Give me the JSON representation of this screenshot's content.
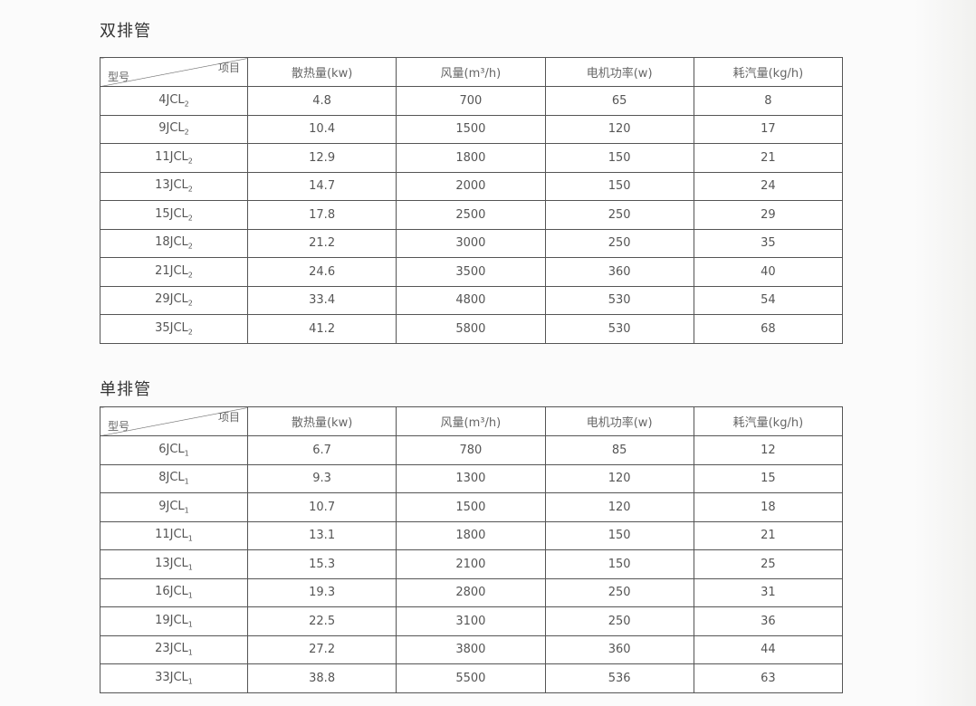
{
  "tables": [
    {
      "title": "双排管",
      "corner": {
        "top_right": "项目",
        "bottom_left": "型号"
      },
      "headers": [
        "散热量(kw)",
        "风量(m³/h)",
        "电机功率(w)",
        "耗汽量(kg/h)"
      ],
      "rows": [
        {
          "model": "4JCL",
          "sub": "2",
          "values": [
            "4.8",
            "700",
            "65",
            "8"
          ]
        },
        {
          "model": "9JCL",
          "sub": "2",
          "values": [
            "10.4",
            "1500",
            "120",
            "17"
          ]
        },
        {
          "model": "11JCL",
          "sub": "2",
          "values": [
            "12.9",
            "1800",
            "150",
            "21"
          ]
        },
        {
          "model": "13JCL",
          "sub": "2",
          "values": [
            "14.7",
            "2000",
            "150",
            "24"
          ]
        },
        {
          "model": "15JCL",
          "sub": "2",
          "values": [
            "17.8",
            "2500",
            "250",
            "29"
          ]
        },
        {
          "model": "18JCL",
          "sub": "2",
          "values": [
            "21.2",
            "3000",
            "250",
            "35"
          ]
        },
        {
          "model": "21JCL",
          "sub": "2",
          "values": [
            "24.6",
            "3500",
            "360",
            "40"
          ]
        },
        {
          "model": "29JCL",
          "sub": "2",
          "values": [
            "33.4",
            "4800",
            "530",
            "54"
          ]
        },
        {
          "model": "35JCL",
          "sub": "2",
          "values": [
            "41.2",
            "5800",
            "530",
            "68"
          ]
        }
      ]
    },
    {
      "title": "单排管",
      "corner": {
        "top_right": "项目",
        "bottom_left": "型号"
      },
      "headers": [
        "散热量(kw)",
        "风量(m³/h)",
        "电机功率(w)",
        "耗汽量(kg/h)"
      ],
      "rows": [
        {
          "model": "6JCL",
          "sub": "1",
          "values": [
            "6.7",
            "780",
            "85",
            "12"
          ]
        },
        {
          "model": "8JCL",
          "sub": "1",
          "values": [
            "9.3",
            "1300",
            "120",
            "15"
          ]
        },
        {
          "model": "9JCL",
          "sub": "1",
          "values": [
            "10.7",
            "1500",
            "120",
            "18"
          ]
        },
        {
          "model": "11JCL",
          "sub": "1",
          "values": [
            "13.1",
            "1800",
            "150",
            "21"
          ]
        },
        {
          "model": "13JCL",
          "sub": "1",
          "values": [
            "15.3",
            "2100",
            "150",
            "25"
          ]
        },
        {
          "model": "16JCL",
          "sub": "1",
          "values": [
            "19.3",
            "2800",
            "250",
            "31"
          ]
        },
        {
          "model": "19JCL",
          "sub": "1",
          "values": [
            "22.5",
            "3100",
            "250",
            "36"
          ]
        },
        {
          "model": "23JCL",
          "sub": "1",
          "values": [
            "27.2",
            "3800",
            "360",
            "44"
          ]
        },
        {
          "model": "33JCL",
          "sub": "1",
          "values": [
            "38.8",
            "5500",
            "536",
            "63"
          ]
        }
      ]
    }
  ]
}
